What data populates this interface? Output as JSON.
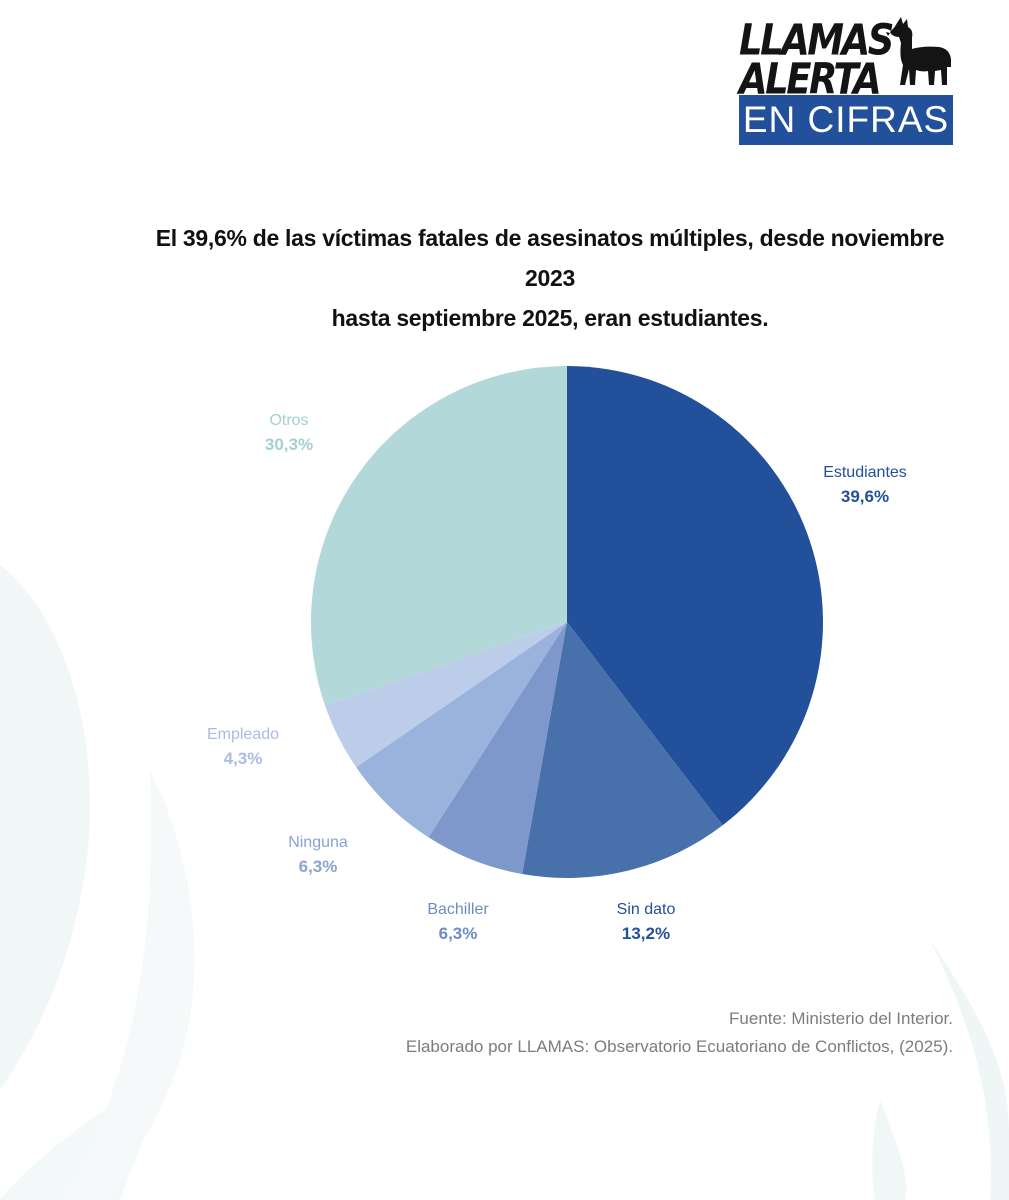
{
  "logo": {
    "line1": "LLAMAS",
    "line2": "ALERTA",
    "band": "EN CIFRAS",
    "icon": "llama-icon"
  },
  "title": {
    "line1": "El 39,6% de las víctimas fatales de asesinatos múltiples, desde noviembre 2023",
    "line2": "hasta septiembre 2025, eran estudiantes."
  },
  "chart_data": {
    "type": "pie",
    "title": "El 39,6% de las víctimas fatales de asesinatos múltiples, desde noviembre 2023 hasta septiembre 2025, eran estudiantes.",
    "start": "12 o'clock",
    "direction": "clockwise",
    "slices": [
      {
        "label": "Estudiantes",
        "value": 39.6,
        "display": "39,6%",
        "color": "#23509a",
        "label_color": "#23509a"
      },
      {
        "label": "Sin dato",
        "value": 13.2,
        "display": "13,2%",
        "color": "#4870ab",
        "label_color": "#23509a"
      },
      {
        "label": "Bachiller",
        "value": 6.3,
        "display": "6,3%",
        "color": "#7f98cc",
        "label_color": "#6f8bc5"
      },
      {
        "label": "Ninguna",
        "value": 6.3,
        "display": "6,3%",
        "color": "#9ab3dc",
        "label_color": "#8aa3d1"
      },
      {
        "label": "Empleado",
        "value": 4.3,
        "display": "4,3%",
        "color": "#bccdea",
        "label_color": "#a9bde2"
      },
      {
        "label": "Otros",
        "value": 30.3,
        "display": "30,3%",
        "color": "#b3d8d9",
        "label_color": "#a4d0d1"
      }
    ]
  },
  "footer": {
    "source": "Fuente: Ministerio del Interior.",
    "credit": "Elaborado por LLAMAS: Observatorio Ecuatoriano de Conflictos, (2025)."
  }
}
